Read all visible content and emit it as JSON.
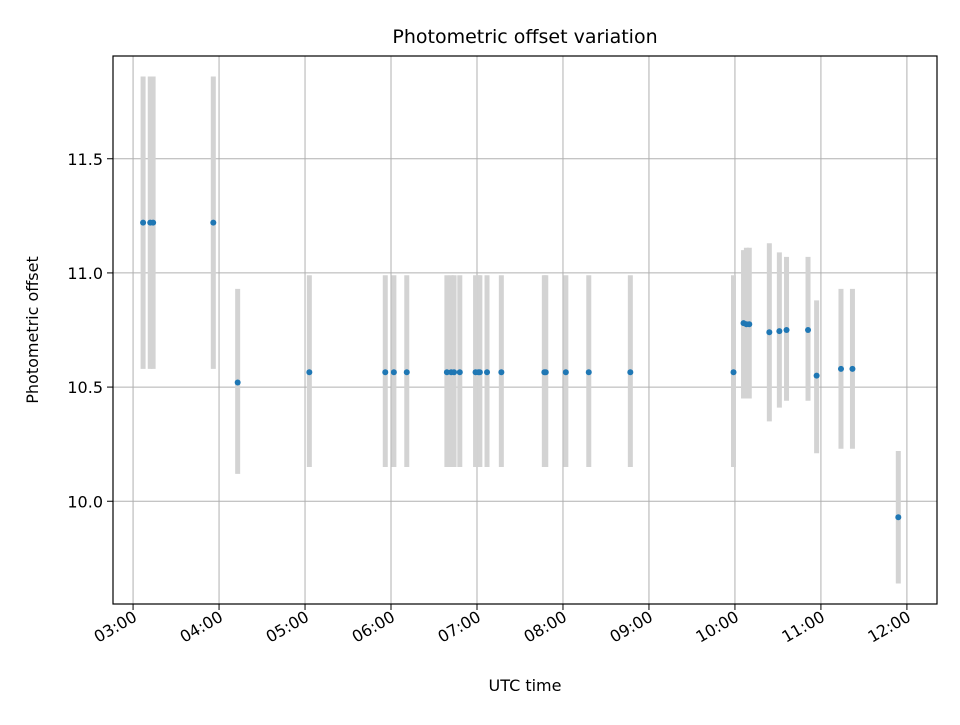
{
  "chart_data": {
    "type": "scatter",
    "title": "Photometric offset variation",
    "xlabel": "UTC time",
    "ylabel": "Photometric offset",
    "xlim": [
      "02:46",
      "12:21"
    ],
    "ylim": [
      9.55,
      11.95
    ],
    "x_ticks": [
      "03:00",
      "04:00",
      "05:00",
      "06:00",
      "07:00",
      "08:00",
      "09:00",
      "10:00",
      "11:00",
      "12:00"
    ],
    "y_ticks": [
      "10.0",
      "10.5",
      "11.0",
      "11.5"
    ],
    "grid": true,
    "series": [
      {
        "marker_color": "#1f77b4",
        "errorbar_color": "#d3d3d3",
        "points": [
          {
            "t": "03:07",
            "y": 11.22,
            "lo": 10.58,
            "hi": 11.86
          },
          {
            "t": "03:12",
            "y": 11.22,
            "lo": 10.58,
            "hi": 11.86
          },
          {
            "t": "03:14",
            "y": 11.22,
            "lo": 10.58,
            "hi": 11.86
          },
          {
            "t": "03:56",
            "y": 11.22,
            "lo": 10.58,
            "hi": 11.86
          },
          {
            "t": "04:13",
            "y": 10.52,
            "lo": 10.12,
            "hi": 10.93
          },
          {
            "t": "05:03",
            "y": 10.565,
            "lo": 10.15,
            "hi": 10.99
          },
          {
            "t": "05:56",
            "y": 10.565,
            "lo": 10.15,
            "hi": 10.99
          },
          {
            "t": "06:02",
            "y": 10.565,
            "lo": 10.15,
            "hi": 10.99
          },
          {
            "t": "06:11",
            "y": 10.565,
            "lo": 10.15,
            "hi": 10.99
          },
          {
            "t": "06:39",
            "y": 10.565,
            "lo": 10.15,
            "hi": 10.99
          },
          {
            "t": "06:42",
            "y": 10.565,
            "lo": 10.15,
            "hi": 10.99
          },
          {
            "t": "06:44",
            "y": 10.565,
            "lo": 10.15,
            "hi": 10.99
          },
          {
            "t": "06:48",
            "y": 10.565,
            "lo": 10.15,
            "hi": 10.99
          },
          {
            "t": "06:59",
            "y": 10.565,
            "lo": 10.15,
            "hi": 10.99
          },
          {
            "t": "07:01",
            "y": 10.565,
            "lo": 10.15,
            "hi": 10.99
          },
          {
            "t": "07:02",
            "y": 10.565,
            "lo": 10.15,
            "hi": 10.99
          },
          {
            "t": "07:07",
            "y": 10.565,
            "lo": 10.15,
            "hi": 10.99
          },
          {
            "t": "07:17",
            "y": 10.565,
            "lo": 10.15,
            "hi": 10.99
          },
          {
            "t": "07:47",
            "y": 10.565,
            "lo": 10.15,
            "hi": 10.99
          },
          {
            "t": "07:48",
            "y": 10.565,
            "lo": 10.15,
            "hi": 10.99
          },
          {
            "t": "08:02",
            "y": 10.565,
            "lo": 10.15,
            "hi": 10.99
          },
          {
            "t": "08:18",
            "y": 10.565,
            "lo": 10.15,
            "hi": 10.99
          },
          {
            "t": "08:47",
            "y": 10.565,
            "lo": 10.15,
            "hi": 10.99
          },
          {
            "t": "09:59",
            "y": 10.565,
            "lo": 10.15,
            "hi": 10.99
          },
          {
            "t": "10:06",
            "y": 10.78,
            "lo": 10.45,
            "hi": 11.1
          },
          {
            "t": "10:08",
            "y": 10.775,
            "lo": 10.45,
            "hi": 11.11
          },
          {
            "t": "10:10",
            "y": 10.775,
            "lo": 10.45,
            "hi": 11.11
          },
          {
            "t": "10:24",
            "y": 10.74,
            "lo": 10.35,
            "hi": 11.13
          },
          {
            "t": "10:31",
            "y": 10.745,
            "lo": 10.41,
            "hi": 11.09
          },
          {
            "t": "10:36",
            "y": 10.75,
            "lo": 10.44,
            "hi": 11.07
          },
          {
            "t": "10:51",
            "y": 10.75,
            "lo": 10.44,
            "hi": 11.07
          },
          {
            "t": "10:57",
            "y": 10.55,
            "lo": 10.21,
            "hi": 10.88
          },
          {
            "t": "11:14",
            "y": 10.58,
            "lo": 10.23,
            "hi": 10.93
          },
          {
            "t": "11:22",
            "y": 10.58,
            "lo": 10.23,
            "hi": 10.93
          },
          {
            "t": "11:54",
            "y": 9.93,
            "lo": 9.64,
            "hi": 10.22
          }
        ]
      }
    ]
  }
}
